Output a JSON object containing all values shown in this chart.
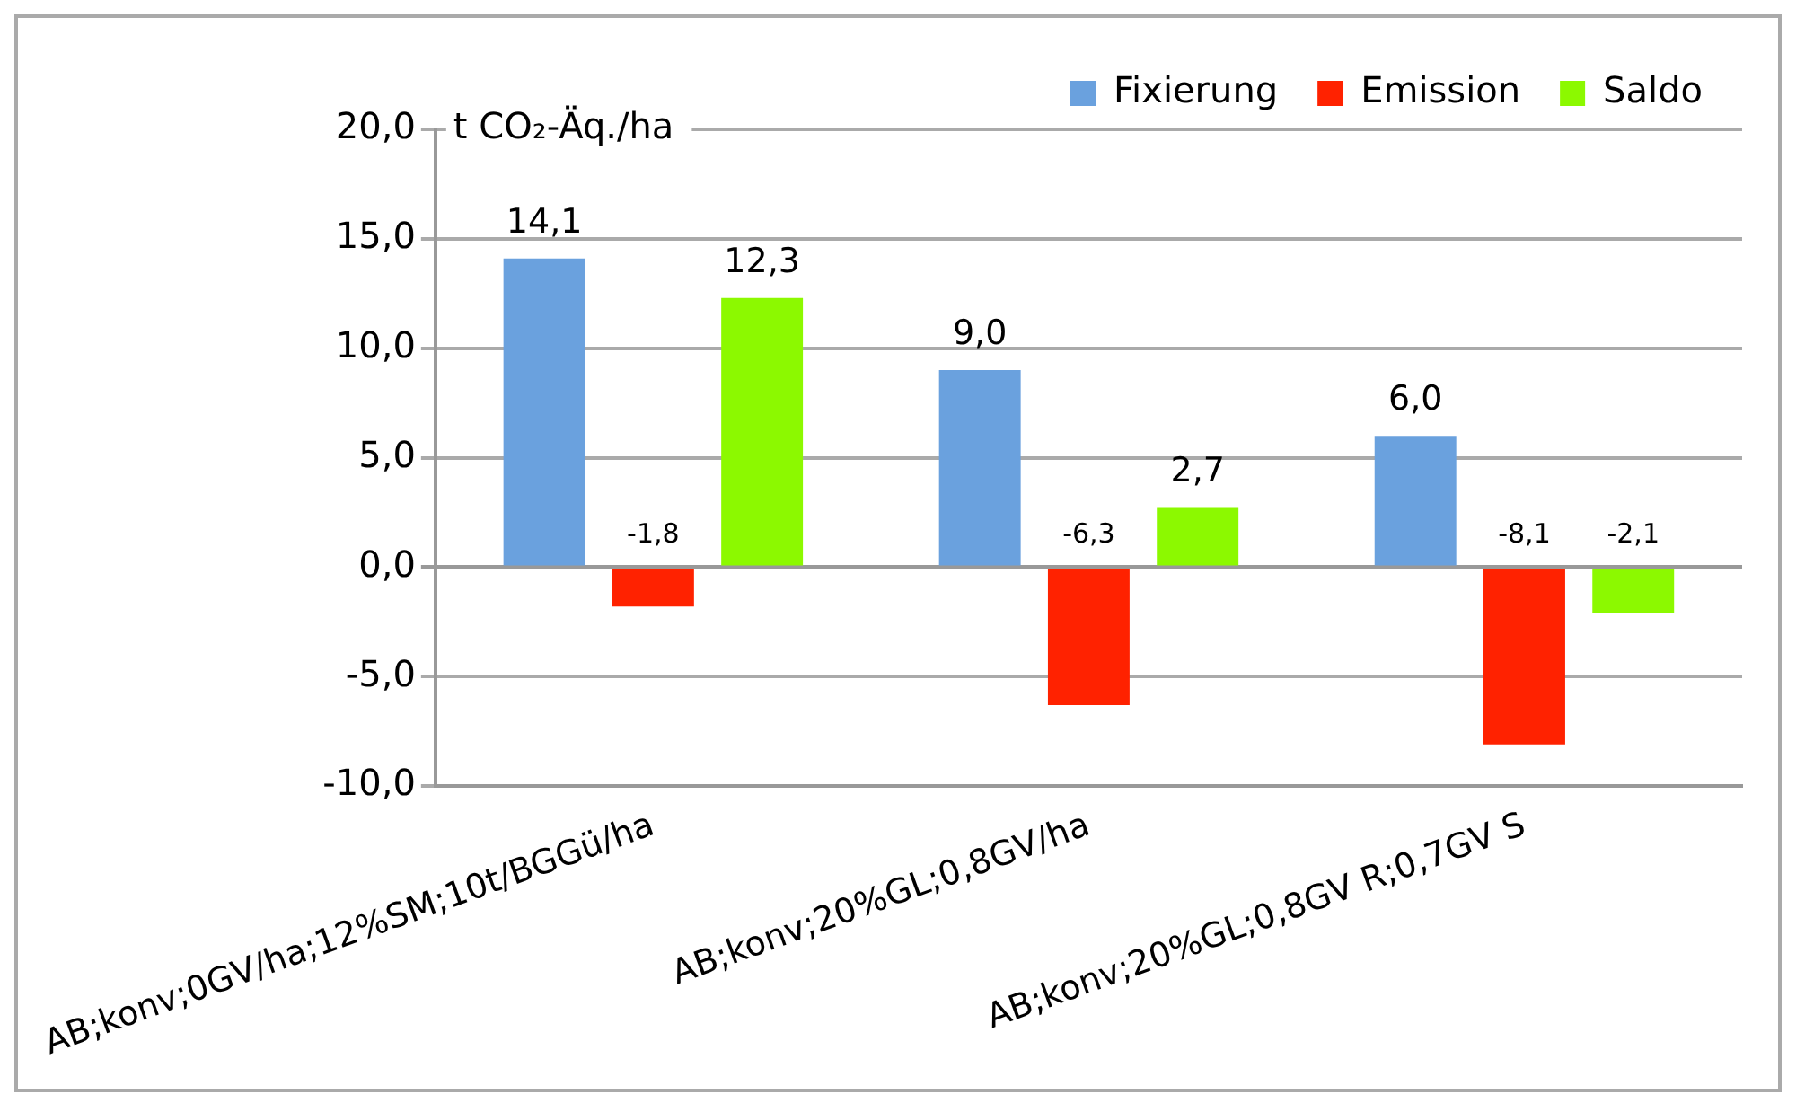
{
  "chart_data": {
    "type": "bar",
    "ylabel": "t CO₂-Äq./ha",
    "categories": [
      "AB;konv;0GV/ha;12%SM;10t/BGGü/ha",
      "AB;konv;20%GL;0,8GV/ha",
      "AB;konv;20%GL;0,8GV R;0,7GV S"
    ],
    "series": [
      {
        "name": "Fixierung",
        "color": "#6aa1de",
        "values": [
          14.1,
          9.0,
          6.0
        ],
        "value_labels": [
          "14,1",
          "9,0",
          "6,0"
        ]
      },
      {
        "name": "Emission",
        "color": "#ff2200",
        "values": [
          -1.8,
          -6.3,
          -8.1
        ],
        "value_labels": [
          "-1,8",
          "-6,3",
          "-8,1"
        ]
      },
      {
        "name": "Saldo",
        "color": "#8cf900",
        "values": [
          12.3,
          2.7,
          -2.1
        ],
        "value_labels": [
          "12,3",
          "2,7",
          "-2,1"
        ]
      }
    ],
    "ylim": [
      -10,
      20
    ],
    "yticks": [
      {
        "value": -10,
        "label": "-10,0"
      },
      {
        "value": -5,
        "label": "-5,0"
      },
      {
        "value": 0,
        "label": "0,0"
      },
      {
        "value": 5,
        "label": "5,0"
      },
      {
        "value": 10,
        "label": "10,0"
      },
      {
        "value": 15,
        "label": "15,0"
      },
      {
        "value": 20,
        "label": "20,0"
      }
    ],
    "grid": "y",
    "legend": "top right"
  }
}
